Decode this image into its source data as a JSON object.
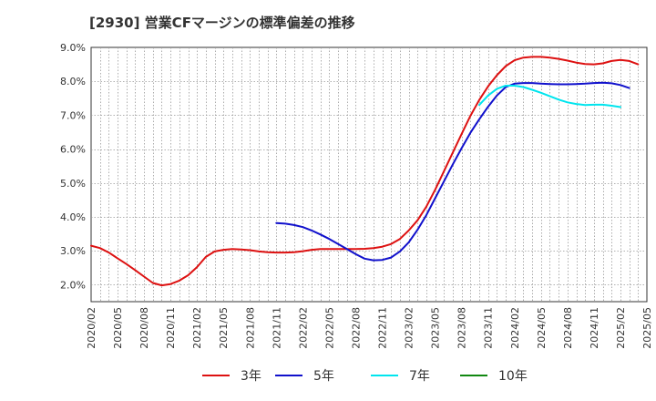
{
  "chart_data": {
    "type": "line",
    "title": "[2930]  営業CFマージンの標準偏差の推移",
    "xlabel": "",
    "ylabel": "",
    "ylim": [
      1.5,
      9.0
    ],
    "grid": true,
    "legend_position": "bottom",
    "y_ticks": [
      "2.0%",
      "3.0%",
      "4.0%",
      "5.0%",
      "6.0%",
      "7.0%",
      "8.0%",
      "9.0%"
    ],
    "y_tick_values": [
      2.0,
      3.0,
      4.0,
      5.0,
      6.0,
      7.0,
      8.0,
      9.0
    ],
    "x_ticks": [
      "2020/02",
      "2020/05",
      "2020/08",
      "2020/11",
      "2021/02",
      "2021/05",
      "2021/08",
      "2021/11",
      "2022/02",
      "2022/05",
      "2022/08",
      "2022/11",
      "2023/02",
      "2023/05",
      "2023/08",
      "2023/11",
      "2024/02",
      "2024/05",
      "2024/08",
      "2024/11",
      "2025/02",
      "2025/05"
    ],
    "x_start": "2020/02",
    "x_end": "2025/05",
    "series": [
      {
        "name": "3年",
        "color": "#dd1111",
        "start": "2020/02",
        "values": [
          3.15,
          3.08,
          2.95,
          2.78,
          2.61,
          2.43,
          2.24,
          2.05,
          1.98,
          2.02,
          2.12,
          2.28,
          2.52,
          2.82,
          2.98,
          3.03,
          3.05,
          3.04,
          3.02,
          2.98,
          2.96,
          2.95,
          2.95,
          2.96,
          2.99,
          3.03,
          3.05,
          3.05,
          3.05,
          3.05,
          3.05,
          3.06,
          3.08,
          3.12,
          3.2,
          3.35,
          3.6,
          3.9,
          4.3,
          4.8,
          5.35,
          5.9,
          6.45,
          6.98,
          7.45,
          7.85,
          8.18,
          8.45,
          8.62,
          8.7,
          8.72,
          8.72,
          8.7,
          8.66,
          8.61,
          8.55,
          8.51,
          8.5,
          8.53,
          8.6,
          8.63,
          8.6,
          8.5
        ]
      },
      {
        "name": "5年",
        "color": "#1111cc",
        "start": "2021/11",
        "values": [
          3.82,
          3.8,
          3.76,
          3.7,
          3.6,
          3.48,
          3.35,
          3.2,
          3.05,
          2.9,
          2.77,
          2.72,
          2.73,
          2.8,
          2.98,
          3.25,
          3.62,
          4.05,
          4.55,
          5.05,
          5.55,
          6.03,
          6.48,
          6.88,
          7.25,
          7.58,
          7.83,
          7.93,
          7.95,
          7.95,
          7.93,
          7.92,
          7.91,
          7.91,
          7.92,
          7.93,
          7.95,
          7.96,
          7.94,
          7.89,
          7.8
        ]
      },
      {
        "name": "7年",
        "color": "#00e5ee",
        "start": "2023/10",
        "values": [
          7.3,
          7.58,
          7.78,
          7.87,
          7.87,
          7.83,
          7.75,
          7.66,
          7.56,
          7.46,
          7.38,
          7.33,
          7.3,
          7.31,
          7.31,
          7.28,
          7.24
        ]
      },
      {
        "name": "10年",
        "color": "#118811",
        "start": "2025/02",
        "values": []
      }
    ]
  }
}
